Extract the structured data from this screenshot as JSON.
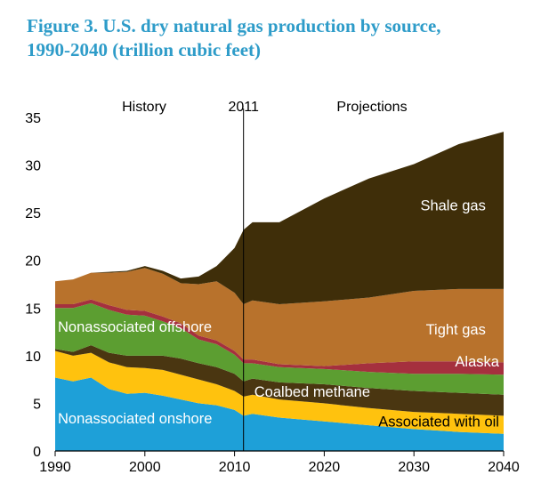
{
  "title_lines": [
    "Figure 3. U.S. dry natural gas production by source,",
    "1990-2040 (trillion cubic feet)"
  ],
  "chart_data": {
    "type": "area",
    "title": "Figure 3. U.S. dry natural gas production by source, 1990-2040 (trillion cubic feet)",
    "xlabel": "",
    "ylabel": "",
    "xlim": [
      1990,
      2040
    ],
    "ylim": [
      0,
      35
    ],
    "x_ticks": [
      "1990",
      "2000",
      "2010",
      "2020",
      "2030",
      "2040"
    ],
    "y_ticks": [
      "0",
      "5",
      "10",
      "15",
      "20",
      "25",
      "30",
      "35"
    ],
    "grid": false,
    "stacked": true,
    "divider": {
      "x": 2011,
      "label": "2011"
    },
    "region_labels": {
      "history": "History",
      "projections": "Projections"
    },
    "x": [
      1990,
      1992,
      1994,
      1996,
      1998,
      2000,
      2002,
      2004,
      2006,
      2008,
      2010,
      2011,
      2012,
      2015,
      2020,
      2025,
      2030,
      2035,
      2040
    ],
    "series": [
      {
        "name": "Nonassociated onshore",
        "color": "#1EA0D8",
        "values": [
          7.7,
          7.3,
          7.7,
          6.5,
          6.0,
          6.1,
          5.8,
          5.4,
          5.0,
          4.8,
          4.3,
          3.7,
          3.9,
          3.5,
          3.1,
          2.7,
          2.3,
          2.0,
          1.8
        ]
      },
      {
        "name": "Associated with oil",
        "color": "#FFC20E",
        "values": [
          2.8,
          2.7,
          2.6,
          2.8,
          2.8,
          2.6,
          2.7,
          2.6,
          2.5,
          2.2,
          2.0,
          2.0,
          2.0,
          1.9,
          1.9,
          1.8,
          1.8,
          1.9,
          1.9
        ]
      },
      {
        "name": "Coalbed methane",
        "color": "#4A3611",
        "values": [
          0.2,
          0.4,
          0.8,
          1.0,
          1.2,
          1.3,
          1.5,
          1.7,
          1.7,
          1.8,
          1.8,
          1.6,
          1.7,
          1.8,
          2.0,
          2.1,
          2.2,
          2.2,
          2.2
        ]
      },
      {
        "name": "Nonassociated offshore",
        "color": "#5C9E31",
        "values": [
          4.3,
          4.6,
          4.4,
          4.5,
          4.3,
          4.2,
          3.6,
          3.2,
          2.5,
          2.4,
          2.0,
          1.9,
          1.6,
          1.6,
          1.6,
          1.7,
          1.8,
          2.0,
          2.1
        ]
      },
      {
        "name": "Alaska",
        "color": "#A5303E",
        "values": [
          0.4,
          0.4,
          0.4,
          0.5,
          0.5,
          0.5,
          0.5,
          0.5,
          0.4,
          0.4,
          0.4,
          0.4,
          0.4,
          0.3,
          0.3,
          0.9,
          1.3,
          1.3,
          1.3
        ]
      },
      {
        "name": "Tight gas",
        "color": "#B8722C",
        "values": [
          2.4,
          2.6,
          2.8,
          3.4,
          4.0,
          4.5,
          4.5,
          4.2,
          5.4,
          6.2,
          6.1,
          5.8,
          6.2,
          6.3,
          6.8,
          6.9,
          7.4,
          7.6,
          7.7
        ]
      },
      {
        "name": "Shale gas",
        "color": "#3F2E09",
        "values": [
          0.0,
          0.0,
          0.0,
          0.1,
          0.1,
          0.2,
          0.3,
          0.5,
          0.8,
          1.6,
          4.7,
          7.8,
          8.2,
          8.6,
          10.8,
          12.5,
          13.3,
          15.2,
          16.5
        ]
      }
    ]
  }
}
